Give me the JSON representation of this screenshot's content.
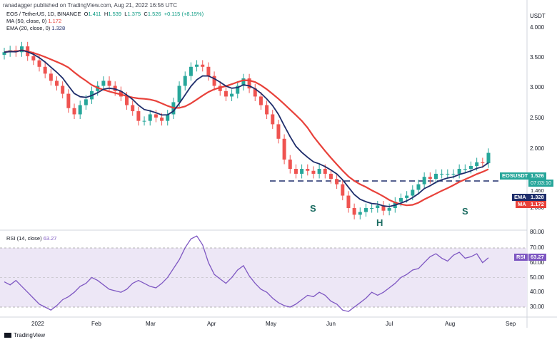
{
  "header": {
    "publisher_line": "ranadagger published on TradingView.com, Aug 21, 2022 16:56 UTC",
    "symbol_line": "EOS / TetherUS, 1D, BINANCE",
    "o_label": "O",
    "o_value": "1.411",
    "h_label": "H",
    "h_value": "1.539",
    "l_label": "L",
    "l_value": "1.375",
    "c_label": "C",
    "c_value": "1.526",
    "change_value": "+0.115 (+8.15%)",
    "ma_legend": "MA (50, close, 0)",
    "ma_value": "1.172",
    "ema_legend": "EMA (20, close, 0)",
    "ema_value": "1.328",
    "rsi_legend": "RSI (14, close)",
    "rsi_value": "63.27"
  },
  "price_axis": {
    "unit": "USDT",
    "ticks": [
      "4.000",
      "3.500",
      "3.000",
      "2.500",
      "2.000",
      "1.000"
    ]
  },
  "price_tags": {
    "symbol_tag": "EOSUSDT",
    "last_price": "1.526",
    "countdown": "07:03:10",
    "level_tag": "1.460",
    "ema_tag_label": "EMA",
    "ema_tag_value": "1.328",
    "ma_tag_label": "MA",
    "ma_tag_value": "1.172"
  },
  "rsi_axis": {
    "ticks": [
      "80.00",
      "70.00",
      "60.00",
      "50.00",
      "40.00",
      "30.00"
    ],
    "tag_label": "RSI",
    "tag_value": "63.27"
  },
  "x_axis": {
    "ticks": [
      "2022",
      "Feb",
      "Mar",
      "Apr",
      "May",
      "Jun",
      "Jul",
      "Aug",
      "Sep"
    ]
  },
  "annotations": {
    "left_shoulder": "S",
    "head": "H",
    "right_shoulder": "S"
  },
  "footer": {
    "brand": "TradingView"
  },
  "colors": {
    "up": "#26a69a",
    "down": "#ef5350",
    "ema": "#1e2d6b",
    "ma": "#e8413a",
    "rsi_line": "#7e57c2",
    "rsi_band": "#ede7f6",
    "neckline": "#1e2d6b",
    "tag_green": "#26a69a"
  },
  "chart_data": [
    {
      "type": "candlestick",
      "title": "EOS / TetherUS, 1D, BINANCE",
      "ylabel": "USDT",
      "scale": "log",
      "ylim": [
        0.85,
        4.3
      ],
      "x_ticks": [
        "2022",
        "Feb",
        "Mar",
        "Apr",
        "May",
        "Jun",
        "Jul",
        "Aug",
        "Sep"
      ],
      "neckline": 1.46,
      "close_series": [
        3.3,
        3.35,
        3.3,
        3.45,
        3.2,
        3.1,
        2.95,
        2.8,
        2.65,
        2.55,
        2.4,
        2.15,
        2.05,
        2.2,
        2.3,
        2.45,
        2.55,
        2.65,
        2.55,
        2.45,
        2.35,
        2.2,
        2.1,
        1.95,
        1.95,
        2.05,
        2.0,
        1.95,
        2.05,
        2.25,
        2.55,
        2.75,
        2.95,
        3.0,
        2.95,
        2.75,
        2.55,
        2.45,
        2.35,
        2.4,
        2.55,
        2.7,
        2.5,
        2.35,
        2.2,
        2.05,
        1.9,
        1.7,
        1.45,
        1.35,
        1.3,
        1.35,
        1.33,
        1.3,
        1.35,
        1.3,
        1.25,
        1.2,
        1.1,
        1.0,
        0.95,
        0.97,
        1.0,
        1.0,
        1.02,
        0.98,
        1.0,
        1.05,
        1.08,
        1.1,
        1.15,
        1.2,
        1.27,
        1.25,
        1.3,
        1.3,
        1.3,
        1.3,
        1.35,
        1.35,
        1.38,
        1.42,
        1.41,
        1.526
      ],
      "series": [
        {
          "name": "EMA (20, close, 0)",
          "last": 1.328
        },
        {
          "name": "MA (50, close, 0)",
          "last": 1.172
        }
      ]
    },
    {
      "type": "line",
      "title": "RSI (14, close)",
      "ylim": [
        25,
        82
      ],
      "reference_levels": [
        70,
        30
      ],
      "series": [
        {
          "name": "RSI (14, close)",
          "values": [
            47,
            45,
            48,
            44,
            40,
            36,
            32,
            30,
            28,
            31,
            35,
            37,
            40,
            44,
            46,
            50,
            48,
            45,
            42,
            41,
            40,
            42,
            46,
            48,
            46,
            44,
            43,
            46,
            50,
            56,
            62,
            70,
            76,
            78,
            72,
            60,
            52,
            49,
            46,
            50,
            55,
            58,
            51,
            46,
            42,
            40,
            36,
            33,
            31,
            30,
            32,
            35,
            38,
            37,
            40,
            38,
            34,
            32,
            28,
            27,
            30,
            33,
            36,
            40,
            38,
            40,
            43,
            46,
            50,
            52,
            55,
            56,
            60,
            64,
            66,
            63,
            61,
            65,
            67,
            63,
            64,
            66,
            60,
            63.27
          ]
        }
      ]
    }
  ]
}
